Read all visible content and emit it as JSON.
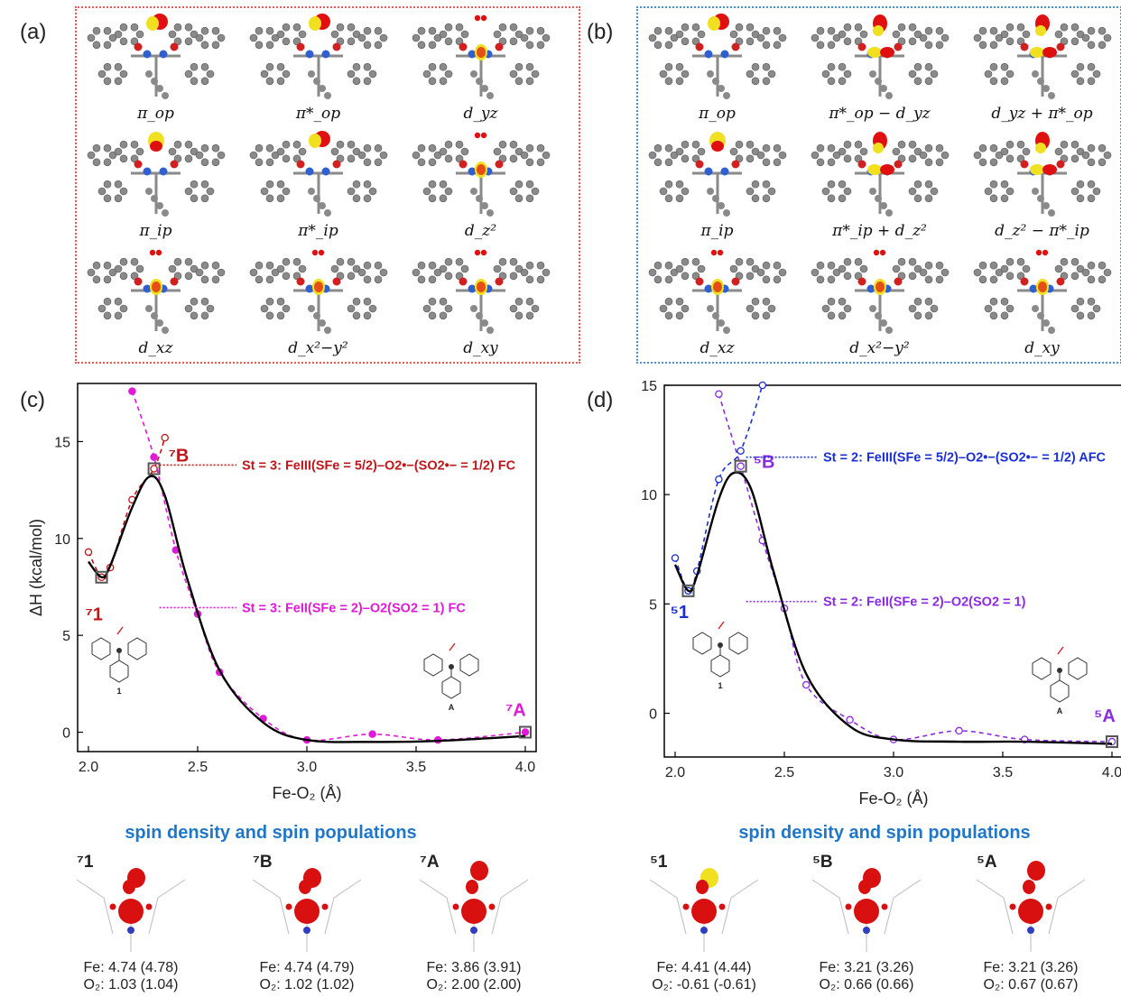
{
  "panels": {
    "a": "(a)",
    "b": "(b)",
    "c": "(c)",
    "d": "(d)"
  },
  "orbitals_a": [
    "π_op",
    "π*_op",
    "d_yz",
    "π_ip",
    "π*_ip",
    "d_z²",
    "d_xz",
    "d_x²−y²",
    "d_xy"
  ],
  "orbitals_b": [
    "π_op",
    "π*_op − d_yz",
    "d_yz + π*_op",
    "π_ip",
    "π*_ip + d_z²",
    "d_z² − π*_ip",
    "d_xz",
    "d_x²−y²",
    "d_xy"
  ],
  "spin_titles": {
    "c": "spin density and spin populations",
    "d": "spin density and spin populations"
  },
  "spin_c": [
    {
      "label": "⁷1",
      "fe": "Fe: 4.74 (4.78)",
      "o2": "O₂: 1.03 (1.04)"
    },
    {
      "label": "⁷B",
      "fe": "Fe: 4.74 (4.79)",
      "o2": "O₂: 1.02 (1.02)"
    },
    {
      "label": "⁷A",
      "fe": "Fe: 3.86 (3.91)",
      "o2": "O₂: 2.00 (2.00)"
    }
  ],
  "spin_d": [
    {
      "label": "⁵1",
      "fe": "Fe: 4.41 (4.44)",
      "o2": "O₂: -0.61 (-0.61)"
    },
    {
      "label": "⁵B",
      "fe": "Fe: 3.21 (3.26)",
      "o2": "O₂: 0.66 (0.66)"
    },
    {
      "label": "⁵A",
      "fe": "Fe: 3.21 (3.26)",
      "o2": "O₂: 0.67 (0.67)"
    }
  ],
  "colors": {
    "red": "#c0161b",
    "magenta": "#e01ad8",
    "blue": "#1b2fd6",
    "purple": "#8a2be2",
    "black": "#000000"
  },
  "chart_data": [
    {
      "type": "line",
      "panel": "(c)",
      "xlabel": "Fe-O₂ (Å)",
      "ylabel": "ΔH (kcal/mol)",
      "xlim": [
        2.0,
        4.0
      ],
      "ylim": [
        -1,
        18
      ],
      "xticks": [
        "2.0",
        "2.5",
        "3.0",
        "3.5",
        "4.0"
      ],
      "yticks": [
        "0",
        "5",
        "10",
        "15"
      ],
      "series": [
        {
          "name": "St = 3: FeIII(SFe = 5/2)–O2•−(SO2•− = 1/2) FC",
          "color": "#c0161b",
          "style": "dashed",
          "x": [
            2.0,
            2.06,
            2.1,
            2.2,
            2.3,
            2.35
          ],
          "y": [
            9.3,
            8.0,
            8.5,
            12.0,
            13.6,
            15.2
          ]
        },
        {
          "name": "St = 3: FeII(SFe = 2)–O2(SO2 = 1) FC",
          "color": "#e01ad8",
          "style": "dashed",
          "x": [
            2.2,
            2.3,
            2.4,
            2.5,
            2.6,
            2.8,
            3.0,
            3.3,
            3.6,
            4.0
          ],
          "y": [
            17.6,
            14.2,
            9.4,
            6.1,
            3.1,
            0.7,
            -0.4,
            -0.1,
            -0.4,
            0.0
          ]
        },
        {
          "name": "fit",
          "color": "#000000",
          "style": "solid",
          "x": [
            2.0,
            2.06,
            2.1,
            2.2,
            2.28,
            2.35,
            2.45,
            2.6,
            2.8,
            3.0,
            3.3,
            3.6,
            4.0
          ],
          "y": [
            8.8,
            8.0,
            8.6,
            11.6,
            13.2,
            12.2,
            8.0,
            3.2,
            0.5,
            -0.4,
            -0.5,
            -0.45,
            -0.2
          ]
        }
      ],
      "points": [
        {
          "label": "⁷1",
          "x": 2.06,
          "y": 8.0,
          "color": "#c0161b"
        },
        {
          "label": "⁷B",
          "x": 2.3,
          "y": 13.6,
          "color": "#c0161b"
        },
        {
          "label": "⁷A",
          "x": 4.0,
          "y": 0.0,
          "color": "#e01ad8"
        }
      ],
      "annotations": [
        {
          "text": "St = 3: FeIII(SFe = 5/2)–O2•−(SO2•− = 1/2) FC",
          "color": "#c0161b"
        },
        {
          "text": "St = 3: FeII(SFe = 2)–O2(SO2 = 1) FC",
          "color": "#e01ad8"
        }
      ]
    },
    {
      "type": "line",
      "panel": "(d)",
      "xlabel": "Fe-O₂ (Å)",
      "ylabel": "",
      "xlim": [
        2.0,
        4.0
      ],
      "ylim": [
        -2,
        15
      ],
      "xticks": [
        "2.0",
        "2.5",
        "3.0",
        "3.5",
        "4.0"
      ],
      "yticks": [
        "0",
        "5",
        "10",
        "15"
      ],
      "series": [
        {
          "name": "St = 2: FeIII(SFe = 5/2)–O2•−(SO2•− = 1/2) AFC",
          "color": "#1b2fd6",
          "style": "dashed",
          "x": [
            2.0,
            2.06,
            2.1,
            2.2,
            2.3,
            2.4
          ],
          "y": [
            7.1,
            5.6,
            6.5,
            10.7,
            12.0,
            15.0
          ]
        },
        {
          "name": "St = 2: FeII(SFe = 2)–O2(SO2 = 1)",
          "color": "#8a2be2",
          "style": "dashed",
          "x": [
            2.2,
            2.3,
            2.4,
            2.5,
            2.6,
            2.8,
            3.0,
            3.3,
            3.6,
            4.0
          ],
          "y": [
            14.6,
            11.3,
            7.9,
            4.8,
            1.3,
            -0.3,
            -1.2,
            -0.8,
            -1.2,
            -1.3
          ]
        },
        {
          "name": "fit",
          "color": "#000000",
          "style": "solid",
          "x": [
            2.0,
            2.06,
            2.1,
            2.2,
            2.27,
            2.35,
            2.45,
            2.6,
            2.8,
            3.0,
            3.3,
            3.6,
            4.0
          ],
          "y": [
            6.8,
            5.6,
            6.3,
            9.8,
            11.0,
            10.2,
            6.5,
            1.8,
            -0.6,
            -1.2,
            -1.3,
            -1.3,
            -1.4
          ]
        }
      ],
      "points": [
        {
          "label": "⁵1",
          "x": 2.06,
          "y": 5.6,
          "color": "#1b2fd6"
        },
        {
          "label": "⁵B",
          "x": 2.3,
          "y": 11.3,
          "color": "#8a2be2"
        },
        {
          "label": "⁵A",
          "x": 4.0,
          "y": -1.3,
          "color": "#8a2be2"
        }
      ],
      "annotations": [
        {
          "text": "St = 2: FeIII(SFe = 5/2)–O2•−(SO2•− = 1/2) AFC",
          "color": "#1b2fd6"
        },
        {
          "text": "St = 2: FeII(SFe = 2)–O2(SO2 = 1)",
          "color": "#8a2be2"
        }
      ]
    }
  ]
}
